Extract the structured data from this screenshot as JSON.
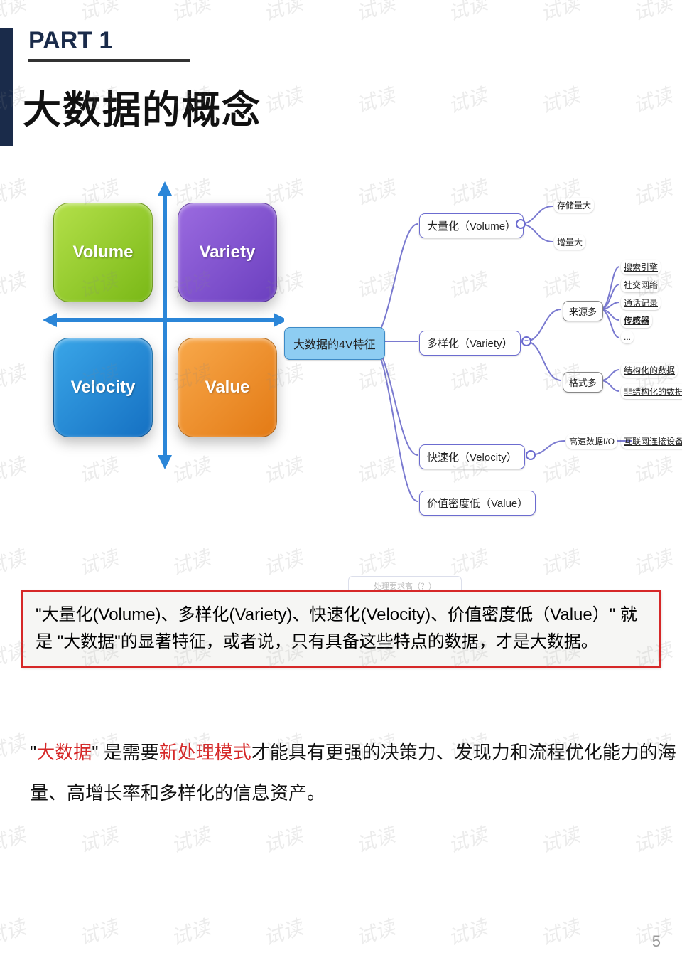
{
  "part_label": "PART 1",
  "title": "大数据的概念",
  "watermark_text": "试读",
  "quadrant": {
    "boxes": {
      "tl": {
        "label": "Volume",
        "bg_from": "#b4e04a",
        "bg_to": "#79b816"
      },
      "tr": {
        "label": "Variety",
        "bg_from": "#9b6be0",
        "bg_to": "#6b3fbf"
      },
      "bl": {
        "label": "Velocity",
        "bg_from": "#3aa6e8",
        "bg_to": "#1570c2"
      },
      "br": {
        "label": "Value",
        "bg_from": "#f8a84a",
        "bg_to": "#e37a15"
      }
    },
    "arrow_color": "#2b86d8"
  },
  "mindmap": {
    "root": "大数据的4V特征",
    "line_color": "#7a7ad0",
    "branches": {
      "volume": {
        "label": "大量化（Volume）",
        "children": [
          "存储量大",
          "增量大"
        ]
      },
      "variety": {
        "label": "多样化（Variety）",
        "sub": {
          "source": {
            "label": "来源多",
            "children": [
              "搜索引擎",
              "社交网络",
              "通话记录",
              "传感器",
              "..."
            ]
          },
          "format": {
            "label": "格式多",
            "children": [
              "结构化的数据",
              "非结构化的数据"
            ]
          }
        }
      },
      "velocity": {
        "label": "快速化（Velocity）",
        "sub": {
          "io": {
            "label": "高速数据I/O",
            "children": [
              "互联网连接设备数量增长"
            ]
          }
        }
      },
      "value": {
        "label": "价值密度低（Value）"
      }
    }
  },
  "ghost_label": "处理要求高（？）",
  "summary": "\"大量化(Volume)、多样化(Variety)、快速化(Velocity)、价值密度低（Value）\" 就是 \"大数据\"的显著特征，或者说，只有具备这些特点的数据，才是大数据。",
  "desc": {
    "quote_open": "\"",
    "hl1": "大数据",
    "quote_close": "\"",
    "t1": " 是需要",
    "hl2": "新处理模式",
    "t2": "才能具有更强的决策力、发现力和流程优化能力的海量、高增长率和多样化的信息资产。"
  },
  "page_number": "5",
  "colors": {
    "side_bar": "#1a2b4a",
    "summary_border": "#d62828",
    "highlight": "#d62828"
  }
}
